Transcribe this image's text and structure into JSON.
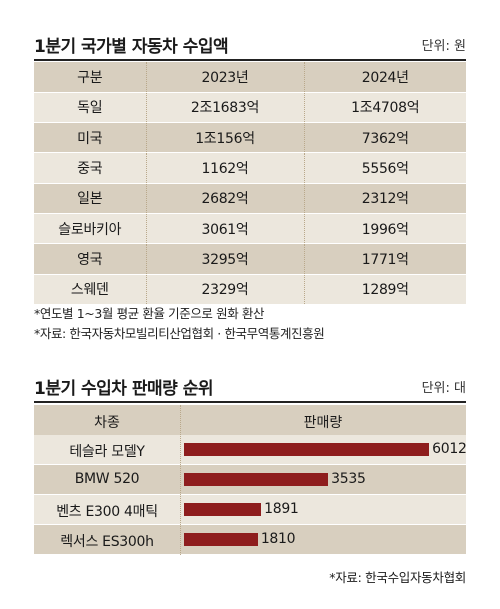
{
  "import_table": {
    "title": "1분기 국가별 자동차 수입액",
    "unit": "단위: 원",
    "headers": [
      "구분",
      "2023년",
      "2024년"
    ],
    "rows": [
      [
        "독일",
        "2조1683억",
        "1조4708억"
      ],
      [
        "미국",
        "1조156억",
        "7362억"
      ],
      [
        "중국",
        "1162억",
        "5556억"
      ],
      [
        "일본",
        "2682억",
        "2312억"
      ],
      [
        "슬로바키아",
        "3061억",
        "1996억"
      ],
      [
        "영국",
        "3295억",
        "1771억"
      ],
      [
        "스웨덴",
        "2329억",
        "1289억"
      ]
    ],
    "note1": "*연도별 1~3월 평균 환율 기준으로 원화 환산",
    "note2": "*자료: 한국자동차모빌리티산업협회 · 한국무역통계진흥원"
  },
  "chart_data": {
    "type": "bar",
    "title": "1분기 수입차 판매량 순위",
    "unit": "단위: 대",
    "header_category": "차종",
    "header_value": "판매량",
    "categories": [
      "테슬라 모델Y",
      "BMW 520",
      "벤츠 E300 4매틱",
      "렉서스 ES300h"
    ],
    "values": [
      6012,
      3535,
      1891,
      1810
    ],
    "xlim": [
      0,
      6500
    ],
    "bar_color": "#8e1d1d",
    "source": "*자료: 한국수입자동차협회"
  }
}
